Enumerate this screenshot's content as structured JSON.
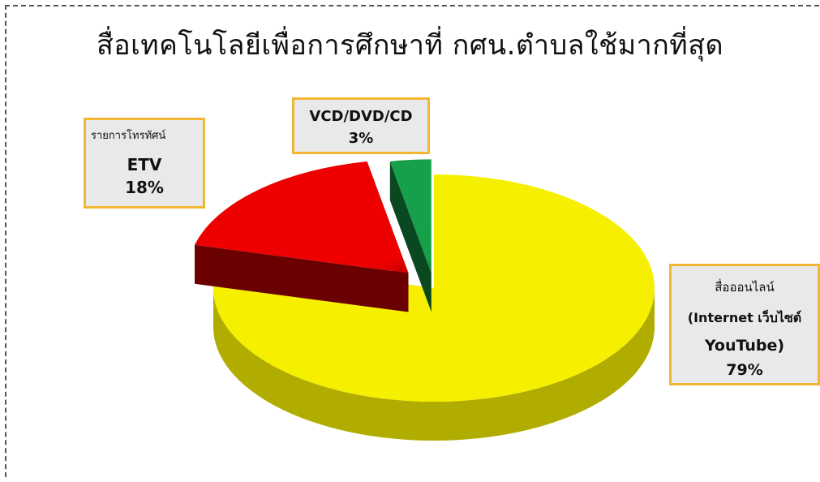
{
  "chart_data": {
    "type": "pie",
    "title": "สื่อเทคโนโลยีเพื่อการศึกษาที่ กศน.ตำบลใช้มากที่สุด",
    "categories": [
      "สื่อออนไลน์ (Internet เว็บไซต์ YouTube)",
      "รายการโทรทัศน์ ETV",
      "VCD/DVD/CD"
    ],
    "values": [
      79,
      18,
      3
    ],
    "colors": [
      "#f6f000",
      "#ee0000",
      "#16a04a"
    ],
    "legend": "none",
    "data_labels": [
      {
        "line1": "สื่อออนไลน์",
        "line2": "(Internet เว็บไซต์",
        "line3": "YouTube)",
        "value_label": "79%"
      },
      {
        "line1": "รายการโทรทัศน์",
        "line2": "ETV",
        "value_label": "18%"
      },
      {
        "line1": "VCD/DVD/CD",
        "value_label": "3%"
      }
    ]
  }
}
